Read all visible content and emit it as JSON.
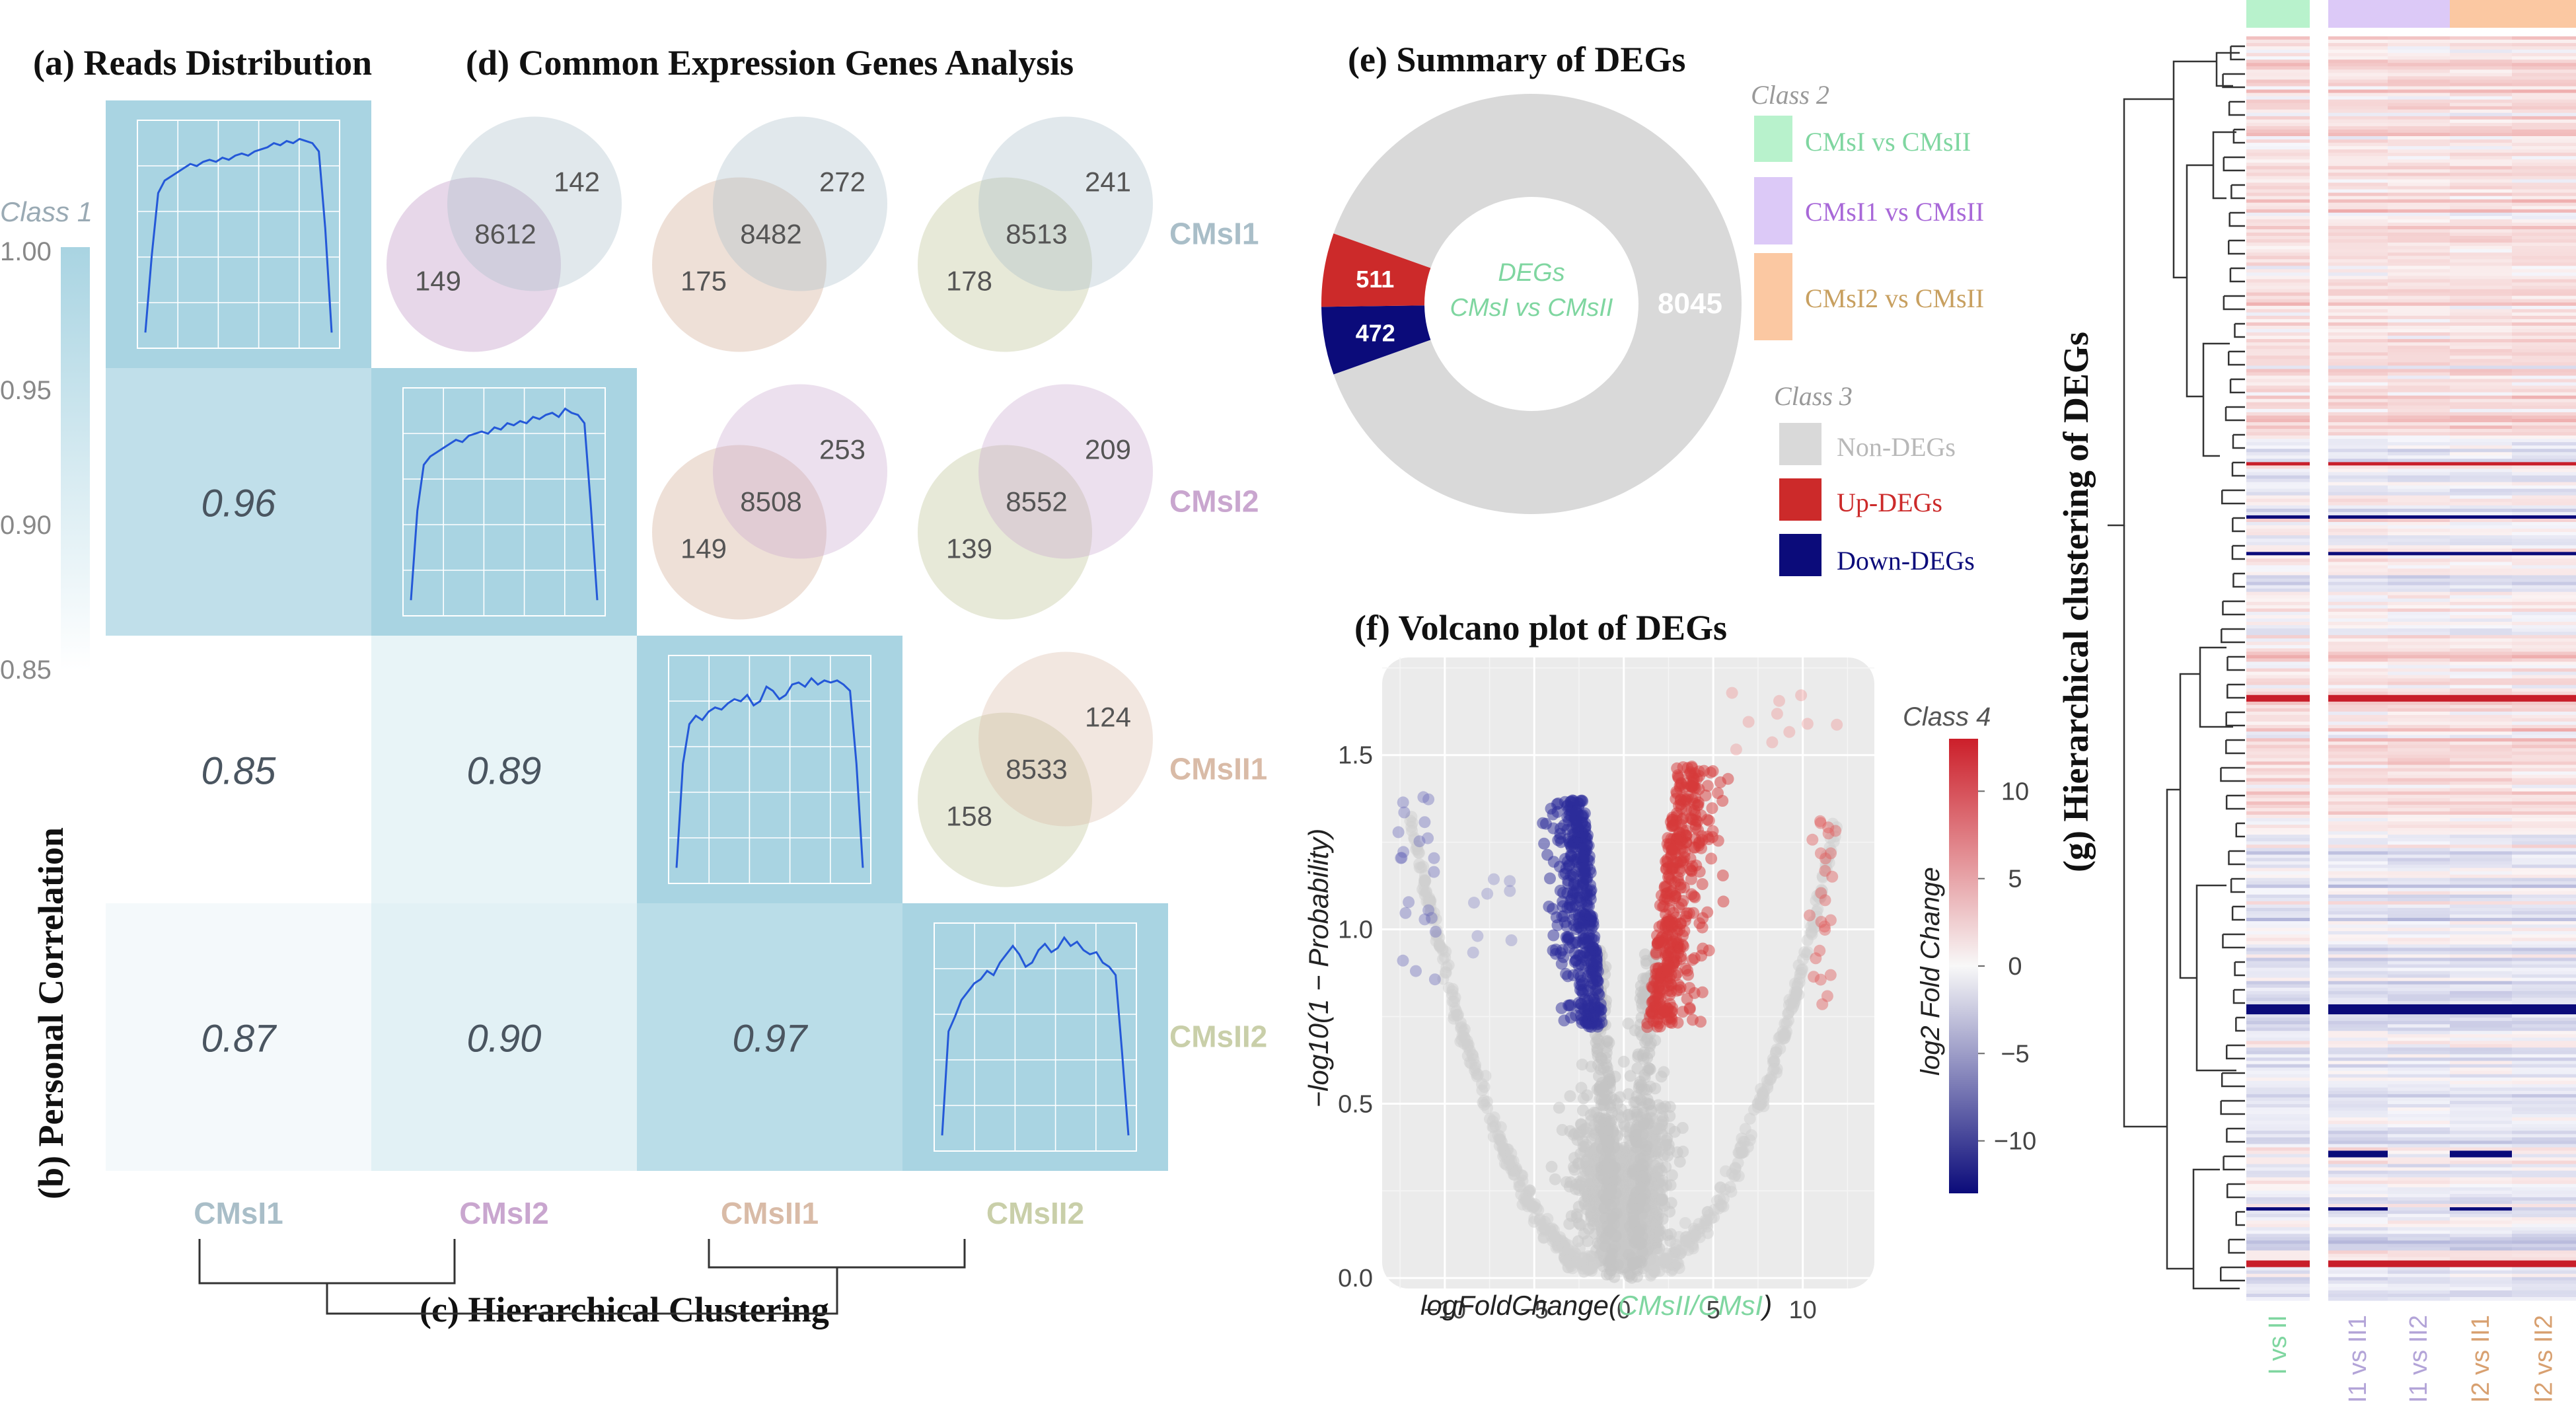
{
  "titles": {
    "a": "(a) Reads Distribution",
    "b": "(b) Personal Correlation",
    "c": "(c) Hierarchical Clustering",
    "d": "(d) Common Expression Genes Analysis",
    "e": "(e)  Summary of DEGs",
    "f": "(f) Volcano plot of DEGs",
    "g": "(g) Hierarchical clustering of DEGs"
  },
  "colors": {
    "CMsI1": "#a9bec8",
    "CMsI2": "#c9a6cf",
    "CMsII1": "#d9bba7",
    "CMsII2": "#c9cfa9",
    "corr_high": "#a9d4e2",
    "up": "#cc2a2a",
    "down": "#0b0b7a",
    "nondeg": "#d9d9d9",
    "class2_a": "#b8f2cc",
    "class2_b": "#dcc9f7",
    "class2_c": "#fbc8a2"
  },
  "samples": [
    "CMsI1",
    "CMsI2",
    "CMsII1",
    "CMsII2"
  ],
  "chart_data": [
    {
      "type": "heatmap",
      "name": "correlation",
      "legend_title": "Class 1",
      "legend_ticks": [
        "1.00",
        "0.95",
        "0.90",
        "0.85"
      ],
      "range": [
        0.85,
        1.0
      ],
      "lower_triangle": [
        {
          "row": 1,
          "col": 0,
          "value": 0.96,
          "label": "0.96"
        },
        {
          "row": 2,
          "col": 0,
          "value": 0.85,
          "label": "0.85"
        },
        {
          "row": 2,
          "col": 1,
          "value": 0.89,
          "label": "0.89"
        },
        {
          "row": 3,
          "col": 0,
          "value": 0.87,
          "label": "0.87"
        },
        {
          "row": 3,
          "col": 1,
          "value": 0.9,
          "label": "0.90"
        },
        {
          "row": 3,
          "col": 2,
          "value": 0.97,
          "label": "0.97"
        }
      ],
      "x_labels": [
        "CMsI1",
        "CMsI2",
        "CMsII1",
        "CMsII2"
      ],
      "y_labels": [
        "CMsI1",
        "CMsI2",
        "CMsII1",
        "CMsII2"
      ]
    },
    {
      "type": "line",
      "name": "reads_distribution",
      "series": [
        {
          "name": "CMsI1",
          "values": [
            0.05,
            0.42,
            0.72,
            0.78,
            0.8,
            0.82,
            0.84,
            0.86,
            0.85,
            0.87,
            0.88,
            0.87,
            0.89,
            0.88,
            0.9,
            0.91,
            0.9,
            0.92,
            0.93,
            0.94,
            0.96,
            0.95,
            0.97,
            0.96,
            0.98,
            0.97,
            0.96,
            0.92,
            0.55,
            0.05
          ]
        },
        {
          "name": "CMsI2",
          "values": [
            0.05,
            0.48,
            0.7,
            0.74,
            0.76,
            0.78,
            0.8,
            0.82,
            0.81,
            0.84,
            0.85,
            0.86,
            0.85,
            0.88,
            0.87,
            0.9,
            0.89,
            0.91,
            0.9,
            0.93,
            0.92,
            0.94,
            0.95,
            0.93,
            0.97,
            0.95,
            0.94,
            0.9,
            0.5,
            0.05
          ]
        },
        {
          "name": "CMsII1",
          "values": [
            0.05,
            0.55,
            0.74,
            0.78,
            0.76,
            0.8,
            0.82,
            0.81,
            0.84,
            0.86,
            0.85,
            0.88,
            0.83,
            0.85,
            0.92,
            0.9,
            0.86,
            0.88,
            0.93,
            0.94,
            0.92,
            0.96,
            0.93,
            0.95,
            0.94,
            0.95,
            0.93,
            0.9,
            0.55,
            0.05
          ]
        },
        {
          "name": "CMsII2",
          "values": [
            0.05,
            0.55,
            0.62,
            0.7,
            0.74,
            0.78,
            0.8,
            0.84,
            0.82,
            0.88,
            0.92,
            0.96,
            0.92,
            0.86,
            0.88,
            0.94,
            0.97,
            0.93,
            0.95,
            1.0,
            0.96,
            0.98,
            0.94,
            0.92,
            0.93,
            0.88,
            0.86,
            0.82,
            0.45,
            0.05
          ]
        }
      ]
    },
    {
      "type": "table",
      "name": "venn_common_genes",
      "cells": [
        {
          "row": 0,
          "col": 1,
          "left": "149",
          "right": "142",
          "common": "8612"
        },
        {
          "row": 0,
          "col": 2,
          "left": "175",
          "right": "272",
          "common": "8482"
        },
        {
          "row": 0,
          "col": 3,
          "left": "178",
          "right": "241",
          "common": "8513"
        },
        {
          "row": 1,
          "col": 2,
          "left": "149",
          "right": "253",
          "common": "8508"
        },
        {
          "row": 1,
          "col": 3,
          "left": "139",
          "right": "209",
          "common": "8552"
        },
        {
          "row": 2,
          "col": 3,
          "left": "158",
          "right": "124",
          "common": "8533"
        }
      ]
    },
    {
      "type": "pie",
      "name": "summary_of_degs",
      "center_label_1": "DEGs",
      "center_label_2": "CMsI vs CMsII",
      "slices": [
        {
          "name": "Non-DEGs",
          "value": 8045,
          "label": "8045"
        },
        {
          "name": "Up-DEGs",
          "value": 511,
          "label": "511"
        },
        {
          "name": "Down-DEGs",
          "value": 472,
          "label": "472"
        }
      ]
    },
    {
      "type": "scatter",
      "name": "volcano",
      "xlabel_prefix": "logFoldChange(",
      "xlabel_colored": "CMsII/CMsI",
      "xlabel_suffix": ")",
      "ylabel": "−log10(1 − Probability)",
      "xlim": [
        -13.5,
        14.0
      ],
      "ylim": [
        -0.03,
        1.78
      ],
      "x_ticks": [
        {
          "v": -10,
          "t": "−10"
        },
        {
          "v": -5,
          "t": "−5"
        },
        {
          "v": 0,
          "t": "0"
        },
        {
          "v": 5,
          "t": "5"
        },
        {
          "v": 10,
          "t": "10"
        }
      ],
      "y_ticks": [
        {
          "v": 0.0,
          "t": "0.0"
        },
        {
          "v": 0.5,
          "t": "0.5"
        },
        {
          "v": 1.0,
          "t": "1.0"
        },
        {
          "v": 1.5,
          "t": "1.5"
        }
      ],
      "colorbar_title": "Class 4",
      "colorbar_label": "log2 Fold Change",
      "colorbar_range": [
        -13,
        13
      ],
      "colorbar_ticks": [
        {
          "v": 10,
          "t": "10"
        },
        {
          "v": 5,
          "t": "5"
        },
        {
          "v": 0,
          "t": "0"
        },
        {
          "v": -5,
          "t": "−5"
        },
        {
          "v": -10,
          "t": "−10"
        }
      ]
    },
    {
      "type": "heatmap",
      "name": "degs_clustering",
      "column_labels": [
        "I vs II",
        "I1 vs II1",
        "I1 vs II2",
        "I2 vs II1",
        "I2 vs II2"
      ],
      "column_groups": [
        "class2_a",
        "class2_b",
        "class2_b",
        "class2_c",
        "class2_c"
      ]
    }
  ],
  "legends": {
    "class2": {
      "title": "Class 2",
      "items": [
        "CMsI vs CMsII",
        "CMsI1 vs CMsII",
        "CMsI2 vs CMsII"
      ],
      "text_colors": [
        "#7fd6a0",
        "#a868d8",
        "#c8a060"
      ]
    },
    "class3": {
      "title": "Class 3",
      "items": [
        "Non-DEGs",
        "Up-DEGs",
        "Down-DEGs"
      ],
      "text_colors": [
        "#b8b8b8",
        "#cc2a2a",
        "#0b0b7a"
      ]
    }
  }
}
